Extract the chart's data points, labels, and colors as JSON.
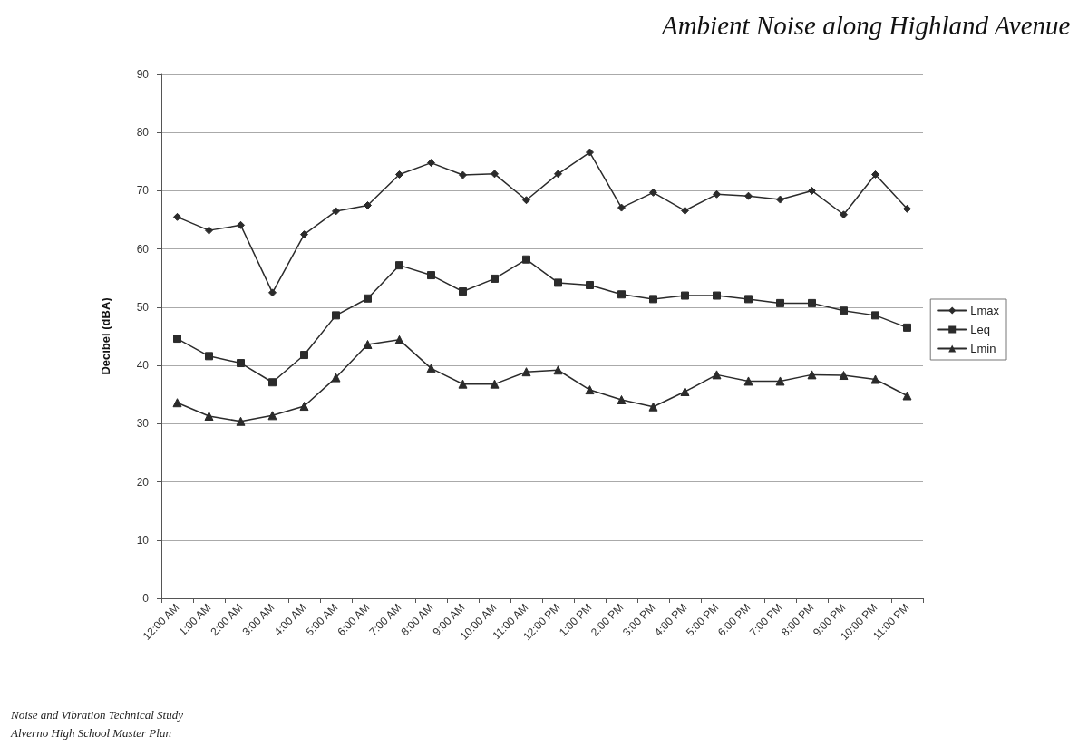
{
  "chart_data": {
    "type": "line",
    "title": "Ambient Noise along Highland Avenue",
    "ylabel": "Decibel (dBA)",
    "categories": [
      "12:00 AM",
      "1:00 AM",
      "2:00 AM",
      "3:00 AM",
      "4:00 AM",
      "5:00 AM",
      "6:00 AM",
      "7:00 AM",
      "8:00 AM",
      "9:00 AM",
      "10:00 AM",
      "11:00 AM",
      "12:00 PM",
      "1:00 PM",
      "2:00 PM",
      "3:00 PM",
      "4:00 PM",
      "5:00 PM",
      "6:00 PM",
      "7:00 PM",
      "8:00 PM",
      "9:00 PM",
      "10:00 PM",
      "11:00 PM"
    ],
    "series": [
      {
        "name": "Lmax",
        "color": "#2b2b2b",
        "marker": "diamond",
        "values": [
          65.5,
          63.2,
          64.1,
          52.5,
          62.5,
          66.5,
          67.5,
          72.8,
          74.8,
          72.7,
          72.9,
          68.4,
          72.9,
          76.6,
          67.1,
          69.7,
          66.6,
          69.4,
          69.1,
          68.5,
          70.0,
          65.9,
          72.8,
          66.9
        ]
      },
      {
        "name": "Leq",
        "color": "#2b2b2b",
        "marker": "square",
        "values": [
          44.6,
          41.6,
          40.4,
          37.1,
          41.8,
          48.6,
          51.5,
          57.2,
          55.5,
          52.7,
          54.9,
          58.2,
          54.2,
          53.8,
          52.2,
          51.4,
          52.0,
          52.0,
          51.4,
          50.7,
          50.7,
          49.4,
          48.6,
          46.5
        ]
      },
      {
        "name": "Lmin",
        "color": "#2b2b2b",
        "marker": "triangle",
        "values": [
          33.6,
          31.3,
          30.4,
          31.4,
          33.0,
          37.9,
          43.6,
          44.4,
          39.5,
          36.8,
          36.8,
          38.9,
          39.2,
          35.8,
          34.1,
          32.9,
          35.5,
          38.4,
          37.3,
          37.3,
          38.4,
          38.3,
          37.6,
          34.8
        ]
      }
    ],
    "ylim": [
      0,
      90
    ],
    "yticks": [
      0,
      10,
      20,
      30,
      40,
      50,
      60,
      70,
      80,
      90
    ],
    "grid": "y",
    "legend": "right",
    "line_style": "solid",
    "annotations": [
      "Noise and Vibration Technical Study",
      "Alverno High School Master Plan"
    ]
  }
}
